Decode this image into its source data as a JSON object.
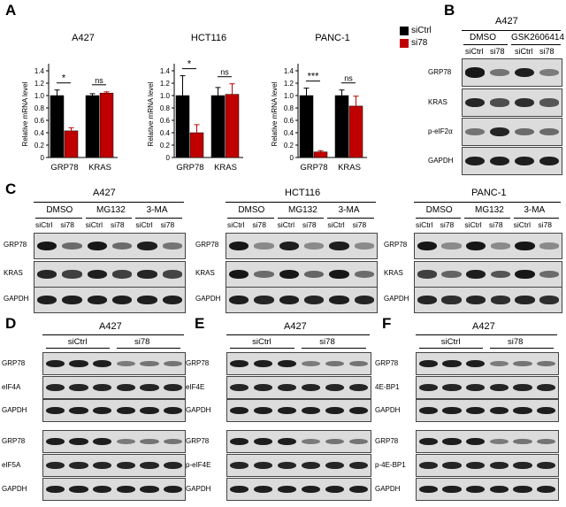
{
  "panels": {
    "A": "A",
    "B": "B",
    "C": "C",
    "D": "D",
    "E": "E",
    "F": "F"
  },
  "legend": {
    "series": [
      {
        "name": "siCtrl",
        "color": "#000000"
      },
      {
        "name": "si78",
        "color": "#c00000"
      }
    ]
  },
  "chart_data": [
    {
      "type": "bar",
      "title": "A427",
      "ylabel": "Relative mRNA level",
      "ylim": [
        0,
        1.4
      ],
      "categories": [
        "GRP78",
        "KRAS"
      ],
      "series": [
        {
          "name": "siCtrl",
          "values": [
            1.0,
            1.0
          ],
          "err": [
            0.09,
            0.03
          ]
        },
        {
          "name": "si78",
          "values": [
            0.43,
            1.04
          ],
          "err": [
            0.05,
            0.02
          ]
        }
      ],
      "annotations": [
        "*",
        "ns"
      ]
    },
    {
      "type": "bar",
      "title": "HCT116",
      "ylabel": "Relative mRNA level",
      "ylim": [
        0,
        1.4
      ],
      "categories": [
        "GRP78",
        "KRAS"
      ],
      "series": [
        {
          "name": "siCtrl",
          "values": [
            1.0,
            1.0
          ],
          "err": [
            0.32,
            0.13
          ]
        },
        {
          "name": "si78",
          "values": [
            0.4,
            1.02
          ],
          "err": [
            0.13,
            0.17
          ]
        }
      ],
      "annotations": [
        "*",
        "ns"
      ]
    },
    {
      "type": "bar",
      "title": "PANC-1",
      "ylabel": "Relative mRNA level",
      "ylim": [
        0,
        1.4
      ],
      "categories": [
        "GRP78",
        "KRAS"
      ],
      "series": [
        {
          "name": "siCtrl",
          "values": [
            1.0,
            1.0
          ],
          "err": [
            0.12,
            0.09
          ]
        },
        {
          "name": "si78",
          "values": [
            0.09,
            0.83
          ],
          "err": [
            0.02,
            0.16
          ]
        }
      ],
      "annotations": [
        "***",
        "ns"
      ]
    }
  ],
  "yticks": [
    "0",
    "0.2",
    "0.4",
    "0.6",
    "0.8",
    "1.0",
    "1.2",
    "1.4"
  ],
  "B": {
    "cell": "A427",
    "groups": [
      "DMSO",
      "GSK2606414"
    ],
    "lanes": [
      "siCtrl",
      "si78",
      "siCtrl",
      "si78"
    ],
    "rows": [
      "GRP78",
      "KRAS",
      "p-eIF2α",
      "GAPDH"
    ]
  },
  "C": {
    "blots": [
      {
        "cell": "A427",
        "groups": [
          "DMSO",
          "MG132",
          "3-MA"
        ]
      },
      {
        "cell": "HCT116",
        "groups": [
          "DMSO",
          "MG132",
          "3-MA"
        ]
      },
      {
        "cell": "PANC-1",
        "groups": [
          "DMSO",
          "MG132",
          "3-MA"
        ]
      }
    ],
    "lanes": [
      "siCtrl",
      "si78",
      "siCtrl",
      "si78",
      "siCtrl",
      "si78"
    ],
    "rows": [
      "GRP78",
      "KRAS",
      "GAPDH"
    ]
  },
  "D": {
    "cell": "A427",
    "groups": [
      "siCtrl",
      "si78"
    ],
    "rows1": [
      "GRP78",
      "eIF4A",
      "GAPDH"
    ],
    "rows2": [
      "GRP78",
      "eIF5A",
      "GAPDH"
    ]
  },
  "E": {
    "cell": "A427",
    "groups": [
      "siCtrl",
      "si78"
    ],
    "rows1": [
      "GRP78",
      "eIF4E",
      "GAPDH"
    ],
    "rows2": [
      "GRP78",
      "p-eIF4E",
      "GAPDH"
    ]
  },
  "F": {
    "cell": "A427",
    "groups": [
      "siCtrl",
      "si78"
    ],
    "rows1": [
      "GRP78",
      "4E-BP1",
      "GAPDH"
    ],
    "rows2": [
      "GRP78",
      "p-4E-BP1",
      "GAPDH"
    ]
  }
}
